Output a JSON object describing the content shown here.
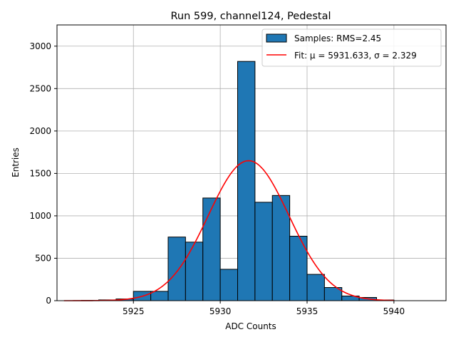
{
  "chart_data": {
    "type": "bar",
    "title": "Run 599, channel124, Pedestal",
    "xlabel": "ADC Counts",
    "ylabel": "Entries",
    "xlim": [
      5920.6,
      5943.0
    ],
    "ylim": [
      0,
      3250
    ],
    "x_ticks": [
      5925,
      5930,
      5935,
      5940
    ],
    "y_ticks": [
      0,
      500,
      1000,
      1500,
      2000,
      2500,
      3000
    ],
    "grid": true,
    "legend_position": "top-right",
    "bins": [
      {
        "x0": 5922.0,
        "x1": 5923.0,
        "count": 4
      },
      {
        "x0": 5923.0,
        "x1": 5924.0,
        "count": 9
      },
      {
        "x0": 5924.0,
        "x1": 5925.0,
        "count": 20
      },
      {
        "x0": 5925.0,
        "x1": 5926.0,
        "count": 110
      },
      {
        "x0": 5926.0,
        "x1": 5927.0,
        "count": 110
      },
      {
        "x0": 5927.0,
        "x1": 5928.0,
        "count": 750
      },
      {
        "x0": 5928.0,
        "x1": 5929.0,
        "count": 690
      },
      {
        "x0": 5929.0,
        "x1": 5930.0,
        "count": 1210
      },
      {
        "x0": 5930.0,
        "x1": 5931.0,
        "count": 370
      },
      {
        "x0": 5931.0,
        "x1": 5932.0,
        "count": 2820
      },
      {
        "x0": 5932.0,
        "x1": 5933.0,
        "count": 1160
      },
      {
        "x0": 5933.0,
        "x1": 5934.0,
        "count": 1240
      },
      {
        "x0": 5934.0,
        "x1": 5935.0,
        "count": 760
      },
      {
        "x0": 5935.0,
        "x1": 5936.0,
        "count": 310
      },
      {
        "x0": 5936.0,
        "x1": 5937.0,
        "count": 155
      },
      {
        "x0": 5937.0,
        "x1": 5938.0,
        "count": 55
      },
      {
        "x0": 5938.0,
        "x1": 5939.0,
        "count": 38
      },
      {
        "x0": 5939.0,
        "x1": 5940.0,
        "count": 8
      }
    ],
    "fit": {
      "mu": 5931.633,
      "sigma": 2.329,
      "amplitude": 1650,
      "x_range": [
        5921.0,
        5940.0
      ]
    },
    "series": [
      {
        "name": "Samples: RMS=2.45",
        "kind": "histogram",
        "color": "#1f77b4"
      },
      {
        "name": "Fit: μ = 5931.633, σ = 2.329",
        "kind": "line",
        "color": "#ff0000"
      }
    ]
  }
}
